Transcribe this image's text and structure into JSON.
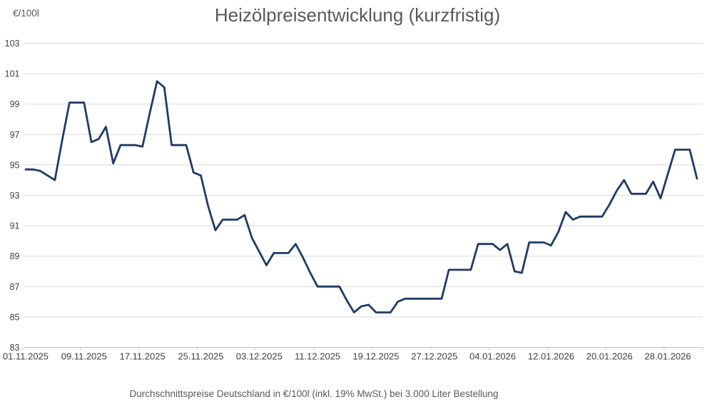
{
  "header": {
    "y_axis_unit": "€/100l",
    "title": "Heizölpreisentwicklung (kurzfristig)"
  },
  "footer": {
    "caption": "Durchschnittspreise Deutschland in €/100l (inkl. 19% MwSt.) bei 3.000 Liter Bestellung"
  },
  "colors": {
    "line": "#1f3b66",
    "grid": "#d9d9d9",
    "axis": "#bfbfbf",
    "tick_label": "#404040",
    "heading_text": "#595959",
    "background": "#ffffff"
  },
  "chart_data": {
    "type": "line",
    "title": "Heizölpreisentwicklung (kurzfristig)",
    "ylabel": "€/100l",
    "xlabel": "",
    "ylim": [
      83,
      103
    ],
    "ytick_step": 2,
    "grid": true,
    "legend_position": "none",
    "x_frequency": "daily",
    "x_start_date": "01.11.2025",
    "x_end_date": "01.02.2026",
    "x_tick_every_n_points": 8,
    "x_tick_labels": [
      "01.11.2025",
      "09.11.2025",
      "17.11.2025",
      "25.11.2025",
      "03.12.2025",
      "11.12.2025",
      "19.12.2025",
      "27.12.2025",
      "04.01.2026",
      "12.01.2026",
      "20.01.2026",
      "28.01.2026"
    ],
    "values": [
      94.7,
      94.7,
      94.6,
      94.3,
      94.0,
      96.6,
      99.1,
      99.1,
      99.1,
      96.5,
      96.7,
      97.5,
      95.1,
      96.3,
      96.3,
      96.3,
      96.2,
      98.4,
      100.5,
      100.1,
      96.3,
      96.3,
      96.3,
      94.5,
      94.3,
      92.3,
      90.7,
      91.4,
      91.4,
      91.4,
      91.7,
      90.2,
      89.3,
      88.4,
      89.2,
      89.2,
      89.2,
      89.8,
      88.9,
      87.9,
      87.0,
      87.0,
      87.0,
      87.0,
      86.1,
      85.3,
      85.7,
      85.8,
      85.3,
      85.3,
      85.3,
      86.0,
      86.2,
      86.2,
      86.2,
      86.2,
      86.2,
      86.2,
      88.1,
      88.1,
      88.1,
      88.1,
      89.8,
      89.8,
      89.8,
      89.4,
      89.8,
      88.0,
      87.9,
      89.9,
      89.9,
      89.9,
      89.7,
      90.6,
      91.9,
      91.4,
      91.6,
      91.6,
      91.6,
      91.6,
      92.4,
      93.3,
      94.0,
      93.1,
      93.1,
      93.1,
      93.9,
      92.8,
      94.4,
      96.0,
      96.0,
      96.0,
      94.1
    ]
  }
}
